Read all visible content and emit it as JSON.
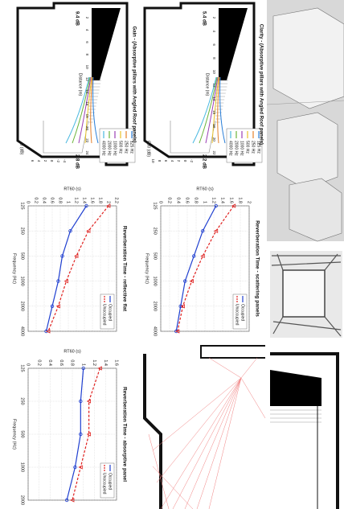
{
  "chart_data": [
    {
      "type": "line",
      "title": "Reverberation Time - reflective flat",
      "x_label": "Frequency (Hz)",
      "y_label": "RT60 (s)",
      "categories": [
        "125",
        "250",
        "500",
        "1000",
        "2000",
        "4000"
      ],
      "series": [
        {
          "name": "Occupied",
          "color": "#1f3fd0",
          "linestyle": "solid",
          "marker": "o",
          "values": [
            1.45,
            1.05,
            0.85,
            0.75,
            0.6,
            0.45
          ]
        },
        {
          "name": "Unoccupied",
          "color": "#e0201e",
          "linestyle": "dashed",
          "marker": "v",
          "values": [
            2.0,
            1.5,
            1.2,
            0.95,
            0.75,
            0.5
          ]
        }
      ],
      "ylim": [
        0,
        2.2
      ],
      "yticks": [
        0,
        0.2,
        0.4,
        0.6,
        0.8,
        1,
        1.2,
        1.4,
        1.6,
        1.8,
        2,
        2.2
      ],
      "grid": true,
      "legend": "upper right"
    },
    {
      "type": "line",
      "title": "Reverberation Time - scattering panels",
      "x_label": "Frequency (Hz)",
      "y_label": "RT60 (s)",
      "categories": [
        "125",
        "250",
        "500",
        "1000",
        "2000",
        "4000"
      ],
      "series": [
        {
          "name": "Occupied",
          "color": "#1f3fd0",
          "linestyle": "solid",
          "marker": "o",
          "values": [
            1.25,
            0.95,
            0.75,
            0.55,
            0.45,
            0.35
          ]
        },
        {
          "name": "Unoccupied",
          "color": "#e0201e",
          "linestyle": "dashed",
          "marker": "v",
          "values": [
            1.65,
            1.25,
            0.95,
            0.7,
            0.5,
            0.38
          ]
        }
      ],
      "ylim": [
        0,
        2
      ],
      "yticks": [
        0,
        0.2,
        0.4,
        0.6,
        0.8,
        1,
        1.2,
        1.4,
        1.6,
        1.8,
        2
      ],
      "grid": true,
      "legend": "upper right"
    },
    {
      "type": "line",
      "title": "Reverberation Time - absorptive panel",
      "x_label": "Frequency (Hz)",
      "y_label": "RT60 (s)",
      "categories": [
        "125",
        "250",
        "500",
        "1000",
        "2000"
      ],
      "series": [
        {
          "name": "Occupied",
          "color": "#1f3fd0",
          "linestyle": "solid",
          "marker": "o",
          "values": [
            1.0,
            0.95,
            0.95,
            0.85,
            0.7
          ]
        },
        {
          "name": "Unoccupied",
          "color": "#e0201e",
          "linestyle": "dashed",
          "marker": "v",
          "values": [
            1.3,
            1.1,
            1.1,
            0.95,
            0.8
          ]
        }
      ],
      "ylim": [
        0,
        1.6
      ],
      "yticks": [
        0,
        0.2,
        0.4,
        0.6,
        0.8,
        1,
        1.2,
        1.4,
        1.6
      ],
      "grid": true,
      "legend": "upper right"
    }
  ],
  "diagrams": [
    {
      "title": "Gain - (Absorptive pillars with Angled Roof panels)",
      "max_label": "9.4 dB",
      "min_label": "2.8 dB",
      "x_label": "Distance (m)",
      "y_label": "G (dB)",
      "distance_ticks": [
        2,
        4,
        6,
        8,
        10,
        12,
        14,
        16,
        18,
        20,
        22,
        24
      ],
      "level_ticks": [
        -4,
        -2,
        0,
        2,
        4,
        6
      ],
      "legend": [
        {
          "name": "125 Hz",
          "color": "#2a7fd8"
        },
        {
          "name": "250 Hz",
          "color": "#e5812b"
        },
        {
          "name": "500 Hz",
          "color": "#e8c22a"
        },
        {
          "name": "1000 Hz",
          "color": "#9b3fb5"
        },
        {
          "name": "2000 Hz",
          "color": "#6ab43a"
        },
        {
          "name": "4000 Hz",
          "color": "#49b8e0"
        }
      ]
    },
    {
      "title": "Clarity - (Absorptive pillars with Angled Roof panels)",
      "max_label": "5.4 dB",
      "min_label": "2.2 dB",
      "x_label": "Distance (m)",
      "y_label": "C80 (dB)",
      "distance_ticks": [
        2,
        4,
        6,
        8,
        10,
        12,
        14,
        16,
        18,
        20,
        22
      ],
      "level_ticks": [
        -2,
        0,
        2,
        4,
        6,
        8,
        10
      ],
      "legend": [
        {
          "name": "125 Hz",
          "color": "#2a7fd8"
        },
        {
          "name": "250 Hz",
          "color": "#e5812b"
        },
        {
          "name": "500 Hz",
          "color": "#e8c22a"
        },
        {
          "name": "1000 Hz",
          "color": "#9b3fb5"
        },
        {
          "name": "2000 Hz",
          "color": "#6ab43a"
        },
        {
          "name": "4000 Hz",
          "color": "#49b8e0"
        }
      ]
    }
  ]
}
